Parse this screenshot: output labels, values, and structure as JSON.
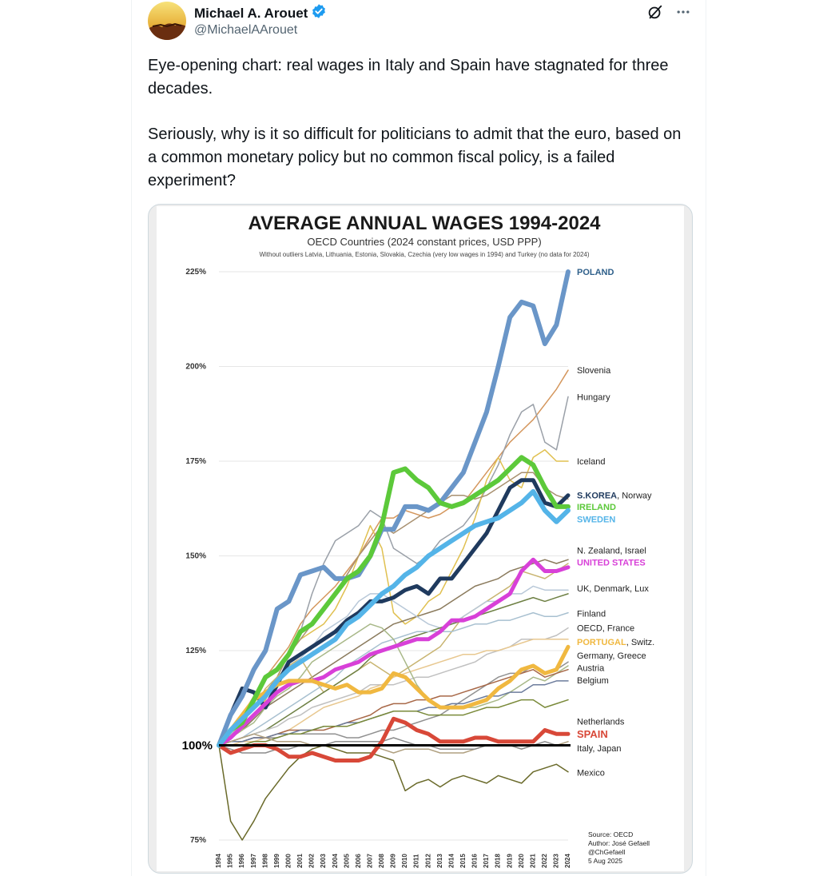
{
  "author": {
    "name": "Michael A. Arouet",
    "handle": "@MichaelAArouet",
    "verified": true
  },
  "tweet_text": [
    "Eye-opening chart: real wages in Italy and Spain have stagnated for three decades.",
    "Seriously, why is it so difficult for politicians to admit that the euro, based on a common monetary policy but no common fiscal policy, is a failed experiment?"
  ],
  "icons": {
    "grok": "grok-icon",
    "more": "more-icon",
    "verified": "verified-badge-icon"
  },
  "chart_data": {
    "type": "line",
    "title": "AVERAGE ANNUAL WAGES 1994-2024",
    "subtitle": "OECD Countries (2024 constant prices, USD PPP)",
    "note": "Without outliers Latvia, Lithuania, Estonia, Slovakia, Czechia (very low wages in 1994) and Turkey (no data for 2024)",
    "x": [
      1994,
      1995,
      1996,
      1997,
      1998,
      1999,
      2000,
      2001,
      2002,
      2003,
      2004,
      2005,
      2006,
      2007,
      2008,
      2009,
      2010,
      2011,
      2012,
      2013,
      2014,
      2015,
      2016,
      2017,
      2018,
      2019,
      2020,
      2021,
      2022,
      2023,
      2024
    ],
    "ylim": [
      75,
      225
    ],
    "y_ticks": [
      "225%",
      "200%",
      "175%",
      "150%",
      "125%",
      "100%",
      "75%"
    ],
    "y_tick_values": [
      225,
      200,
      175,
      150,
      125,
      100,
      75
    ],
    "series": [
      {
        "name": "POLAND",
        "color": "#6a96c8",
        "width": 6,
        "values": [
          100,
          108,
          113,
          120,
          125,
          136,
          138,
          145,
          146,
          147,
          144,
          144,
          145,
          150,
          157,
          157,
          163,
          163,
          162,
          164,
          168,
          172,
          180,
          188,
          200,
          213,
          217,
          216,
          206,
          211,
          225
        ]
      },
      {
        "name": "Slovenia",
        "color": "#d4965c",
        "width": 1.5,
        "values": [
          100,
          104,
          108,
          113,
          118,
          122,
          126,
          132,
          136,
          139,
          142,
          146,
          150,
          155,
          160,
          160,
          162,
          161,
          160,
          161,
          163,
          164,
          168,
          172,
          176,
          180,
          183,
          186,
          190,
          194,
          199
        ]
      },
      {
        "name": "Hungary",
        "color": "#9aa0a8",
        "width": 1.5,
        "values": [
          100,
          103,
          106,
          110,
          114,
          118,
          124,
          130,
          140,
          148,
          154,
          156,
          158,
          162,
          160,
          152,
          150,
          148,
          150,
          154,
          156,
          158,
          162,
          168,
          174,
          182,
          188,
          190,
          180,
          178,
          192
        ]
      },
      {
        "name": "Iceland",
        "color": "#e0c050",
        "width": 1.5,
        "values": [
          100,
          102,
          104,
          108,
          112,
          118,
          124,
          128,
          130,
          132,
          136,
          142,
          150,
          158,
          152,
          135,
          132,
          134,
          138,
          140,
          146,
          152,
          160,
          170,
          176,
          170,
          168,
          176,
          178,
          175,
          175
        ]
      },
      {
        "name": "Norway",
        "color": "#a89070",
        "width": 1.5,
        "values": [
          100,
          103,
          106,
          110,
          114,
          118,
          124,
          128,
          132,
          136,
          140,
          145,
          150,
          154,
          158,
          156,
          158,
          160,
          162,
          164,
          166,
          166,
          165,
          166,
          168,
          170,
          172,
          172,
          168,
          166,
          165
        ]
      },
      {
        "name": "S.KOREA",
        "color": "#1f3a5e",
        "width": 5,
        "values": [
          100,
          108,
          115,
          114,
          110,
          116,
          122,
          124,
          126,
          128,
          130,
          133,
          135,
          138,
          138,
          139,
          141,
          142,
          140,
          144,
          144,
          148,
          152,
          156,
          162,
          168,
          170,
          170,
          164,
          163,
          166
        ]
      },
      {
        "name": "IRELAND",
        "color": "#5cc93a",
        "width": 6,
        "values": [
          100,
          104,
          106,
          112,
          118,
          120,
          124,
          130,
          132,
          136,
          140,
          144,
          146,
          150,
          158,
          172,
          173,
          170,
          168,
          164,
          163,
          164,
          166,
          168,
          170,
          173,
          176,
          174,
          168,
          163,
          163
        ]
      },
      {
        "name": "SWEDEN",
        "color": "#54b4e8",
        "width": 6,
        "values": [
          100,
          104,
          107,
          110,
          113,
          117,
          120,
          122,
          124,
          126,
          128,
          132,
          134,
          137,
          140,
          142,
          145,
          147,
          150,
          152,
          154,
          156,
          158,
          159,
          160,
          162,
          164,
          167,
          162,
          159,
          162
        ]
      },
      {
        "name": "N. Zealand",
        "color": "#8a7a5c",
        "width": 1.5,
        "values": [
          100,
          102,
          104,
          107,
          110,
          112,
          114,
          116,
          118,
          120,
          122,
          124,
          126,
          128,
          130,
          132,
          133,
          134,
          135,
          136,
          138,
          140,
          142,
          143,
          144,
          146,
          147,
          148,
          149,
          148,
          149
        ]
      },
      {
        "name": "Israel",
        "color": "#c8b470",
        "width": 1.5,
        "values": [
          100,
          103,
          106,
          110,
          115,
          118,
          121,
          123,
          118,
          114,
          116,
          118,
          120,
          122,
          120,
          118,
          120,
          122,
          124,
          126,
          130,
          134,
          136,
          138,
          140,
          142,
          146,
          145,
          144,
          146,
          148
        ]
      },
      {
        "name": "UNITED STATES",
        "color": "#d840d8",
        "width": 5,
        "values": [
          100,
          102,
          105,
          108,
          111,
          114,
          116,
          117,
          117,
          118,
          120,
          121,
          122,
          124,
          125,
          126,
          127,
          128,
          128,
          130,
          133,
          133,
          134,
          136,
          138,
          140,
          146,
          149,
          146,
          146,
          147
        ]
      },
      {
        "name": "UK",
        "color": "#b8c8d8",
        "width": 1.5,
        "values": [
          100,
          103,
          106,
          110,
          114,
          117,
          120,
          123,
          126,
          130,
          132,
          134,
          138,
          140,
          140,
          138,
          136,
          134,
          132,
          131,
          132,
          134,
          136,
          138,
          138,
          140,
          140,
          142,
          141,
          141,
          141
        ]
      },
      {
        "name": "Denmark",
        "color": "#6e8044",
        "width": 1.5,
        "values": [
          100,
          101,
          102,
          103,
          104,
          106,
          108,
          110,
          112,
          114,
          116,
          118,
          120,
          123,
          125,
          126,
          128,
          129,
          130,
          131,
          132,
          133,
          134,
          135,
          136,
          137,
          138,
          139,
          138,
          139,
          140
        ]
      },
      {
        "name": "Finland",
        "color": "#a8c0d0",
        "width": 1.5,
        "values": [
          100,
          101,
          102,
          104,
          106,
          108,
          110,
          112,
          114,
          116,
          118,
          121,
          123,
          125,
          127,
          128,
          129,
          130,
          130,
          130,
          130,
          131,
          132,
          132,
          133,
          133,
          134,
          135,
          134,
          134,
          135
        ]
      },
      {
        "name": "OECD",
        "color": "#c0c0c0",
        "width": 1.5,
        "values": [
          100,
          101,
          102,
          103,
          104,
          105,
          107,
          108,
          110,
          111,
          112,
          113,
          114,
          116,
          116,
          116,
          117,
          118,
          118,
          119,
          120,
          121,
          122,
          124,
          125,
          126,
          128,
          128,
          128,
          129,
          131
        ]
      },
      {
        "name": "PORTUGAL",
        "color": "#f0b840",
        "width": 5,
        "values": [
          100,
          104,
          108,
          112,
          114,
          116,
          117,
          117,
          117,
          116,
          115,
          116,
          114,
          114,
          115,
          119,
          118,
          115,
          112,
          110,
          110,
          110,
          111,
          112,
          115,
          117,
          120,
          121,
          119,
          120,
          126
        ]
      },
      {
        "name": "Switz.",
        "color": "#e8c890",
        "width": 1.5,
        "values": [
          100,
          100,
          101,
          101,
          102,
          103,
          104,
          106,
          108,
          110,
          111,
          112,
          113,
          115,
          116,
          118,
          119,
          120,
          121,
          122,
          123,
          124,
          124,
          125,
          125,
          126,
          127,
          128,
          128,
          128,
          128
        ]
      },
      {
        "name": "Germany",
        "color": "#909090",
        "width": 1.5,
        "values": [
          100,
          101,
          101,
          102,
          102,
          102,
          103,
          103,
          103,
          103,
          103,
          102,
          102,
          103,
          104,
          104,
          105,
          106,
          107,
          108,
          110,
          112,
          114,
          116,
          118,
          119,
          119,
          121,
          119,
          120,
          122
        ]
      },
      {
        "name": "Greece",
        "color": "#a8b888",
        "width": 1.5,
        "values": [
          100,
          102,
          104,
          106,
          110,
          113,
          115,
          118,
          122,
          124,
          126,
          128,
          130,
          132,
          131,
          128,
          122,
          116,
          112,
          110,
          110,
          110,
          110,
          111,
          112,
          114,
          116,
          118,
          117,
          119,
          121
        ]
      },
      {
        "name": "Austria",
        "color": "#a86848",
        "width": 1.5,
        "values": [
          100,
          101,
          101,
          102,
          102,
          103,
          104,
          104,
          104,
          104,
          105,
          106,
          107,
          108,
          110,
          111,
          111,
          112,
          112,
          113,
          113,
          114,
          115,
          116,
          117,
          118,
          119,
          120,
          118,
          119,
          120
        ]
      },
      {
        "name": "Belgium",
        "color": "#6c7c9c",
        "width": 1.5,
        "values": [
          100,
          101,
          101,
          102,
          102,
          103,
          103,
          104,
          104,
          105,
          105,
          106,
          106,
          107,
          108,
          109,
          109,
          109,
          110,
          110,
          111,
          111,
          112,
          113,
          113,
          114,
          114,
          116,
          116,
          117,
          117
        ]
      },
      {
        "name": "Netherlands",
        "color": "#7a8a3a",
        "width": 1.5,
        "values": [
          100,
          100,
          100,
          101,
          101,
          102,
          103,
          103,
          104,
          105,
          105,
          105,
          106,
          107,
          108,
          109,
          109,
          109,
          108,
          108,
          108,
          108,
          109,
          110,
          110,
          111,
          112,
          112,
          110,
          111,
          112
        ]
      },
      {
        "name": "Japan",
        "color": "#b0a080",
        "width": 1.5,
        "values": [
          100,
          101,
          102,
          103,
          102,
          101,
          101,
          101,
          100,
          100,
          100,
          100,
          100,
          100,
          99,
          98,
          99,
          99,
          99,
          98,
          98,
          98,
          99,
          100,
          100,
          100,
          99,
          100,
          100,
          100,
          101
        ]
      },
      {
        "name": "SPAIN",
        "color": "#d84838",
        "width": 5,
        "values": [
          100,
          98,
          99,
          100,
          100,
          99,
          97,
          97,
          98,
          97,
          96,
          96,
          96,
          97,
          101,
          107,
          106,
          104,
          103,
          101,
          101,
          101,
          102,
          102,
          101,
          101,
          101,
          101,
          104,
          103,
          103
        ]
      },
      {
        "name": "Italy",
        "color": "#8c8c8c",
        "width": 1.5,
        "values": [
          100,
          99,
          98,
          98,
          98,
          99,
          99,
          100,
          100,
          100,
          101,
          101,
          101,
          101,
          101,
          102,
          101,
          100,
          100,
          99,
          99,
          99,
          99,
          100,
          100,
          100,
          99,
          100,
          101,
          100,
          100
        ]
      },
      {
        "name": "Mexico",
        "color": "#6a6a2a",
        "width": 1.5,
        "values": [
          100,
          80,
          75,
          80,
          86,
          90,
          94,
          97,
          99,
          100,
          99,
          98,
          98,
          98,
          97,
          96,
          88,
          90,
          91,
          89,
          91,
          92,
          91,
          90,
          92,
          91,
          90,
          93,
          94,
          95,
          93
        ]
      }
    ],
    "baseline": {
      "label": "100%",
      "value": 100,
      "color": "#000000"
    },
    "labels": [
      {
        "text": "POLAND",
        "color": "#2e5f8a",
        "bold": true,
        "y": 225
      },
      {
        "text": "Slovenia",
        "color": "#222222",
        "bold": false,
        "y": 199
      },
      {
        "text": "Hungary",
        "color": "#222222",
        "bold": false,
        "y": 192
      },
      {
        "text": "Iceland",
        "color": "#222222",
        "bold": false,
        "y": 175
      },
      {
        "text": "S.KOREA",
        "color": "#1f3a5e",
        "bold": true,
        "y": 166,
        "suffix": ", Norway"
      },
      {
        "text": "IRELAND",
        "color": "#5cc93a",
        "bold": true,
        "y": 163
      },
      {
        "text": "SWEDEN",
        "color": "#54b4e8",
        "bold": true,
        "y": 159.7
      },
      {
        "text": "N. Zealand, Israel",
        "color": "#222222",
        "bold": false,
        "y": 151.5
      },
      {
        "text": "UNITED STATES",
        "color": "#d840d8",
        "bold": true,
        "y": 148.3
      },
      {
        "text": "UK, Denmark, Lux",
        "color": "#222222",
        "bold": false,
        "y": 141.5
      },
      {
        "text": "Finland",
        "color": "#222222",
        "bold": false,
        "y": 134.8
      },
      {
        "text": "OECD, France",
        "color": "#222222",
        "bold": false,
        "y": 131
      },
      {
        "text": "PORTUGAL",
        "color": "#f0b840",
        "bold": true,
        "y": 127.3,
        "suffix": ", Switz."
      },
      {
        "text": "Germany, Greece",
        "color": "#222222",
        "bold": false,
        "y": 123.7
      },
      {
        "text": "Austria",
        "color": "#222222",
        "bold": false,
        "y": 120.5
      },
      {
        "text": "Belgium",
        "color": "#222222",
        "bold": false,
        "y": 117.2
      },
      {
        "text": "Netherlands",
        "color": "#222222",
        "bold": false,
        "y": 106.3
      },
      {
        "text": "SPAIN",
        "color": "#d84838",
        "bold": true,
        "y": 102.8
      },
      {
        "text": "Italy, Japan",
        "color": "#222222",
        "bold": false,
        "y": 99.3
      },
      {
        "text": "Mexico",
        "color": "#222222",
        "bold": false,
        "y": 92.8
      }
    ],
    "source": [
      "Source: OECD",
      "Author: José Gefaell",
      "@ChGefaell",
      "5 Aug 2025"
    ]
  }
}
